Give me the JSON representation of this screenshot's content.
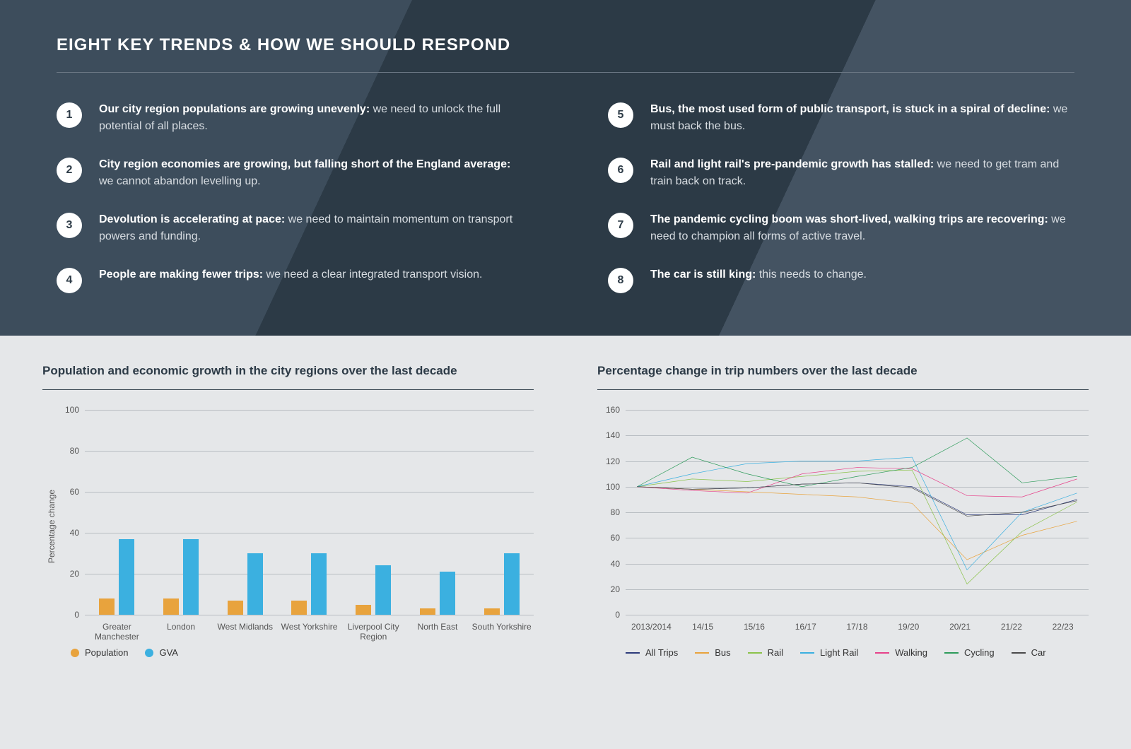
{
  "header": {
    "title": "EIGHT KEY TRENDS & HOW WE SHOULD RESPOND"
  },
  "trends": {
    "left": [
      {
        "num": "1",
        "bold": "Our city region populations are growing unevenly:",
        "rest": " we need to unlock the full potential of all places."
      },
      {
        "num": "2",
        "bold": "City region economies are growing, but falling short of the England average:",
        "rest": " we cannot abandon levelling up."
      },
      {
        "num": "3",
        "bold": "Devolution is accelerating at pace:",
        "rest": " we need to maintain momentum on transport powers and funding."
      },
      {
        "num": "4",
        "bold": "People are making fewer trips:",
        "rest": " we need a clear integrated transport vision."
      }
    ],
    "right": [
      {
        "num": "5",
        "bold": "Bus, the most used form of public transport, is stuck in a spiral of decline:",
        "rest": " we must back the bus."
      },
      {
        "num": "6",
        "bold": "Rail and light rail's pre-pandemic growth has stalled:",
        "rest": " we need to get tram and train back on track."
      },
      {
        "num": "7",
        "bold": "The pandemic cycling boom was short-lived, walking trips are recovering:",
        "rest": " we need to champion all forms of active travel."
      },
      {
        "num": "8",
        "bold": "The car is still king:",
        "rest": " this needs to change."
      }
    ]
  },
  "bar_chart": {
    "type": "bar",
    "title": "Population and economic growth in the city regions over the last decade",
    "y_label": "Percentage change",
    "ylim": [
      0,
      100
    ],
    "y_ticks": [
      0,
      20,
      40,
      60,
      80,
      100
    ],
    "categories": [
      "Greater Manchester",
      "London",
      "West Midlands",
      "West Yorkshire",
      "Liverpool City Region",
      "North East",
      "South Yorkshire"
    ],
    "series": [
      {
        "name": "Population",
        "color": "#e8a33d",
        "values": [
          8,
          8,
          7,
          7,
          5,
          3,
          3
        ]
      },
      {
        "name": "GVA",
        "color": "#3bb0e0",
        "values": [
          37,
          37,
          30,
          30,
          24,
          21,
          30
        ]
      }
    ],
    "grid_color": "#b8bdc2",
    "background_color": "#e5e7e9"
  },
  "line_chart": {
    "type": "line",
    "title": "Percentage change in trip numbers over the last decade",
    "ylim": [
      0,
      160
    ],
    "y_ticks": [
      0,
      20,
      40,
      60,
      80,
      100,
      120,
      140,
      160
    ],
    "x_labels": [
      "2013/2014",
      "14/15",
      "15/16",
      "16/17",
      "17/18",
      "19/20",
      "20/21",
      "21/22",
      "22/23"
    ],
    "series": [
      {
        "name": "All Trips",
        "color": "#2d3b7a",
        "values": [
          100,
          98,
          99,
          102,
          103,
          100,
          78,
          78,
          90
        ]
      },
      {
        "name": "Bus",
        "color": "#e8a33d",
        "values": [
          100,
          98,
          96,
          94,
          92,
          87,
          43,
          62,
          73
        ]
      },
      {
        "name": "Rail",
        "color": "#8bc34a",
        "values": [
          100,
          106,
          104,
          108,
          112,
          113,
          24,
          65,
          88
        ]
      },
      {
        "name": "Light Rail",
        "color": "#3bb0e0",
        "values": [
          100,
          110,
          118,
          120,
          120,
          123,
          35,
          80,
          95
        ]
      },
      {
        "name": "Walking",
        "color": "#e6428a",
        "values": [
          100,
          97,
          95,
          110,
          115,
          114,
          93,
          92,
          106
        ]
      },
      {
        "name": "Cycling",
        "color": "#2d9b5a",
        "values": [
          100,
          123,
          110,
          100,
          108,
          115,
          138,
          103,
          108
        ]
      },
      {
        "name": "Car",
        "color": "#4a4a4a",
        "values": [
          100,
          98,
          99,
          102,
          103,
          99,
          77,
          80,
          89
        ]
      }
    ],
    "grid_color": "#b8bdc2",
    "line_width": 2
  }
}
